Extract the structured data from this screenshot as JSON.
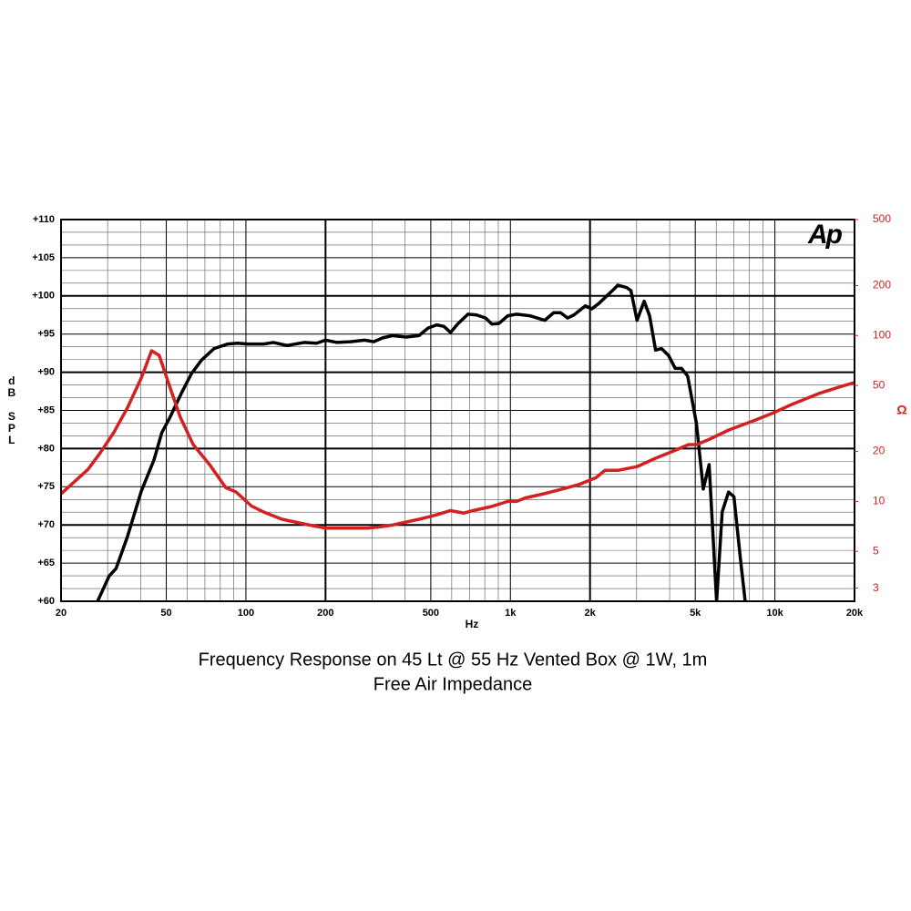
{
  "chart_data": {
    "type": "line",
    "title": "Frequency Response on 45 Lt @ 55 Hz Vented Box @ 1W, 1m",
    "subtitle": "Free Air Impedance",
    "xlabel": "Hz",
    "ylabel": "dB SPL",
    "y2label": "Ω",
    "logo": "Ap",
    "xscale": "log",
    "y2scale": "log",
    "grid": true,
    "xlim": [
      20,
      20000
    ],
    "xticks": [
      20,
      50,
      100,
      200,
      500,
      {
        "value": 1000,
        "label": "1k"
      },
      {
        "value": 2000,
        "label": "2k"
      },
      {
        "value": 5000,
        "label": "5k"
      },
      {
        "value": 10000,
        "label": "10k"
      },
      {
        "value": 20000,
        "label": "20k"
      }
    ],
    "ylim": [
      60,
      110
    ],
    "yticks": [
      {
        "value": 60,
        "label": "+60"
      },
      {
        "value": 65,
        "label": "+65"
      },
      {
        "value": 70,
        "label": "+70"
      },
      {
        "value": 75,
        "label": "+75"
      },
      {
        "value": 80,
        "label": "+80"
      },
      {
        "value": 85,
        "label": "+85"
      },
      {
        "value": 90,
        "label": "+90"
      },
      {
        "value": 95,
        "label": "+95"
      },
      {
        "value": 100,
        "label": "+100"
      },
      {
        "value": 105,
        "label": "+105"
      },
      {
        "value": 110,
        "label": "+110"
      }
    ],
    "y2lim": [
      2.5,
      500
    ],
    "y2ticks": [
      3,
      5,
      10,
      20,
      50,
      100,
      200,
      500
    ],
    "series": [
      {
        "color": "#000000",
        "x": [
          27.5,
          30.4,
          32.3,
          35.6,
          40.2,
          44.9,
          48.1,
          51.3,
          57.3,
          62.2,
          68,
          75.8,
          85.4,
          93,
          102,
          117,
          127,
          143,
          166,
          185,
          200,
          221,
          248,
          281,
          304,
          329,
          358,
          403,
          451,
          489,
          527,
          561,
          594,
          631,
          691,
          746,
          806,
          851,
          906,
          978,
          1056,
          1184,
          1349,
          1457,
          1548,
          1646,
          1738,
          1921,
          2030,
          2158,
          2465,
          2546,
          2748,
          2855,
          3011,
          3204,
          3359,
          3539,
          3726,
          3962,
          4200,
          4436,
          4680,
          5050,
          5360,
          5640,
          6020,
          6320,
          6680,
          7000,
          7400,
          7720
        ],
        "values": [
          60,
          63.3,
          64.3,
          68.4,
          74.4,
          78.5,
          82.1,
          83.9,
          87.4,
          89.8,
          91.6,
          93.1,
          93.7,
          93.8,
          93.7,
          93.7,
          93.9,
          93.5,
          93.9,
          93.8,
          94.2,
          93.9,
          94,
          94.2,
          94,
          94.5,
          94.8,
          94.6,
          94.8,
          95.8,
          96.2,
          96,
          95.2,
          96.3,
          97.6,
          97.5,
          97.1,
          96.3,
          96.4,
          97.4,
          97.6,
          97.4,
          96.8,
          97.8,
          97.8,
          97.1,
          97.5,
          98.7,
          98.3,
          99,
          100.9,
          101.4,
          101.1,
          100.7,
          96.8,
          99.3,
          97.4,
          92.9,
          93.1,
          92.2,
          90.5,
          90.5,
          89.5,
          83.3,
          74.7,
          77.9,
          60,
          71.7,
          74.3,
          73.7,
          65.7,
          60
        ]
      },
      {
        "color": "#d42020",
        "axis": "y2",
        "x": [
          20,
          22.2,
          25.3,
          28,
          31.6,
          35.6,
          40.2,
          44,
          47,
          50.9,
          56.5,
          63.2,
          73,
          83.9,
          91.7,
          104.8,
          117.2,
          137,
          174,
          200,
          240,
          288,
          315,
          358,
          451,
          527,
          594,
          667,
          722,
          845,
          978,
          1056,
          1141,
          1333,
          1548,
          1806,
          2107,
          2280,
          2565,
          3011,
          3539,
          4133,
          4717,
          5065,
          5660,
          6680,
          8430,
          9880,
          11580,
          14660,
          17860,
          20000
        ],
        "values": [
          11.1,
          12.9,
          15.6,
          19.4,
          25.9,
          36.5,
          55.4,
          80.9,
          75.9,
          52,
          32.1,
          22,
          16.6,
          12.1,
          11.4,
          9.4,
          8.6,
          7.8,
          7.2,
          6.9,
          6.9,
          6.9,
          7,
          7.2,
          7.8,
          8.3,
          8.8,
          8.5,
          8.8,
          9.3,
          10,
          10,
          10.5,
          11.1,
          11.8,
          12.6,
          13.9,
          15.4,
          15.4,
          16.2,
          18.2,
          20.1,
          22,
          22,
          23.7,
          26.9,
          30.9,
          34.2,
          38.4,
          44.7,
          49.4,
          52
        ]
      }
    ]
  }
}
